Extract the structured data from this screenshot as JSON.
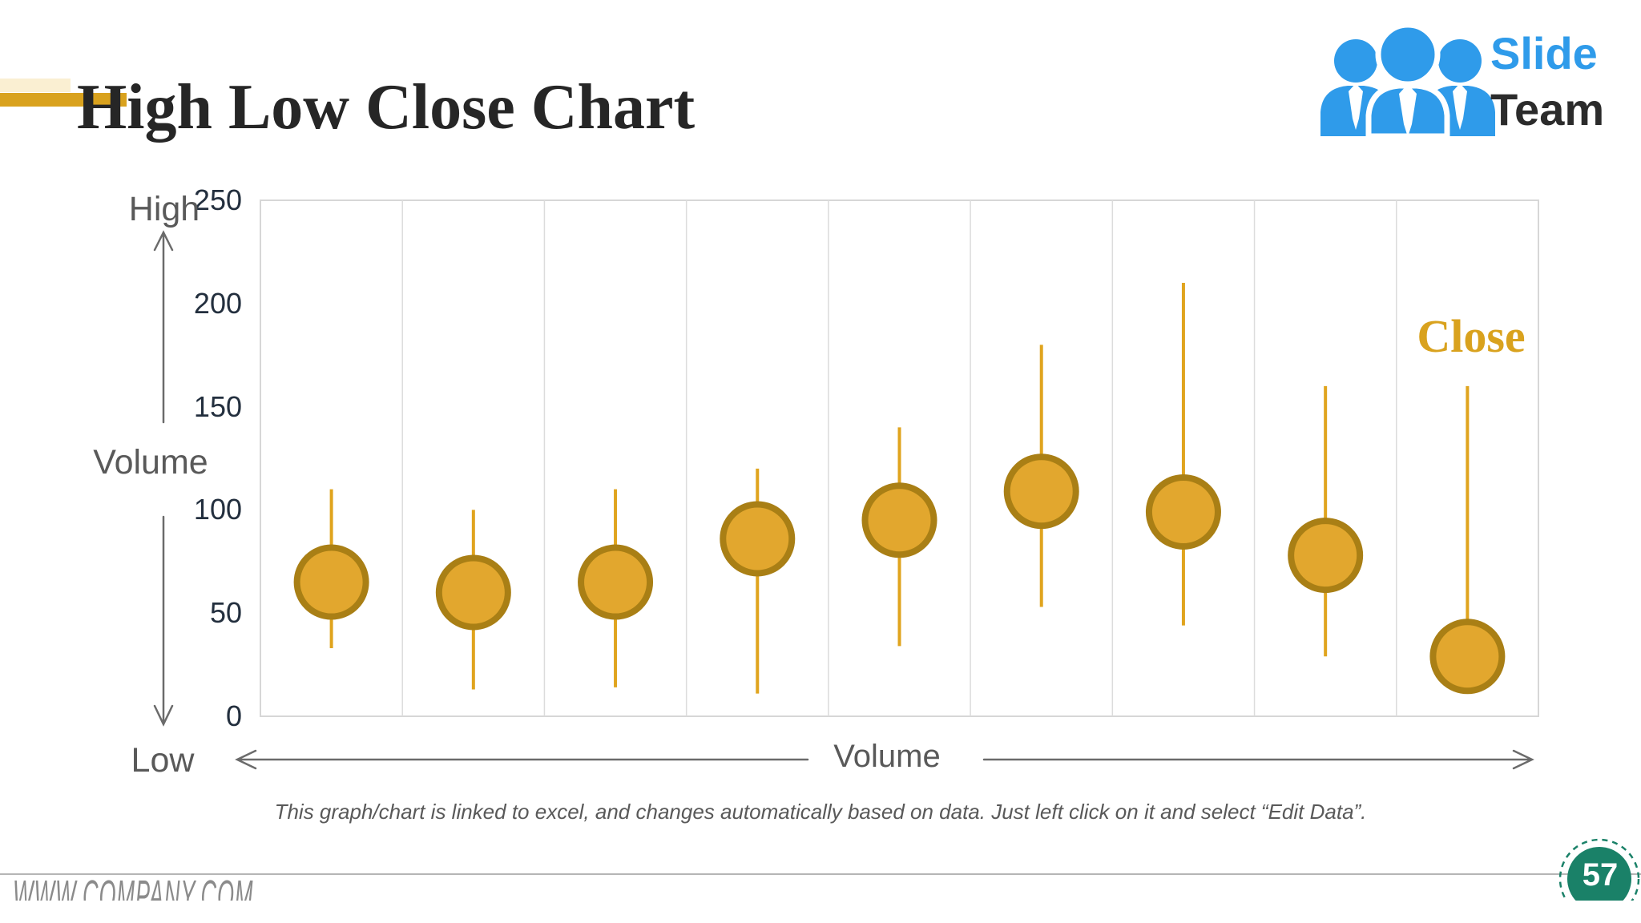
{
  "header": {
    "title": "High Low Close Chart",
    "accent_colors": {
      "pale": "#FAEFD2",
      "gold": "#D9A21E"
    }
  },
  "logo": {
    "line1": "Slide",
    "line2": "Team",
    "blue": "#2F9BEA",
    "dark": "#2B2B2B",
    "icon": "three-people-with-ties-icon"
  },
  "chart_data": {
    "type": "hlc-stock",
    "series_label": "Close",
    "labels": {
      "high": "High",
      "low": "Low",
      "y_axis": "Volume",
      "x_axis": "Volume"
    },
    "y_axis": {
      "min": 0,
      "max": 250,
      "tick_step": 50,
      "ticks": [
        0,
        50,
        100,
        150,
        200,
        250
      ]
    },
    "points": [
      {
        "high": 110,
        "low": 33,
        "close": 65
      },
      {
        "high": 100,
        "low": 13,
        "close": 60
      },
      {
        "high": 110,
        "low": 14,
        "close": 65
      },
      {
        "high": 120,
        "low": 11,
        "close": 86
      },
      {
        "high": 140,
        "low": 34,
        "close": 95
      },
      {
        "high": 180,
        "low": 53,
        "close": 109
      },
      {
        "high": 210,
        "low": 44,
        "close": 99
      },
      {
        "high": 160,
        "low": 29,
        "close": 78
      },
      {
        "high": 160,
        "low": 40,
        "close": 29
      }
    ],
    "grid": true,
    "legend_position": "top-right-inside",
    "colors": {
      "hl_line": "#E0A41E",
      "marker_fill": "#E2A72E",
      "marker_stroke": "#A97F15",
      "grid_line": "#DCDCDC",
      "plot_border": "#D7D7D7",
      "tick_text": "#232F3E",
      "axis_text": "#595959",
      "arrow": "#6B6B6B",
      "close_label": "#D9A21E"
    }
  },
  "footer": {
    "note": "This graph/chart is linked to excel, and changes automatically based on data. Just left click on it and select “Edit Data”.",
    "website": "WWW.COMPANY.COM",
    "page_number": "57",
    "badge_color": "#1A8168"
  }
}
